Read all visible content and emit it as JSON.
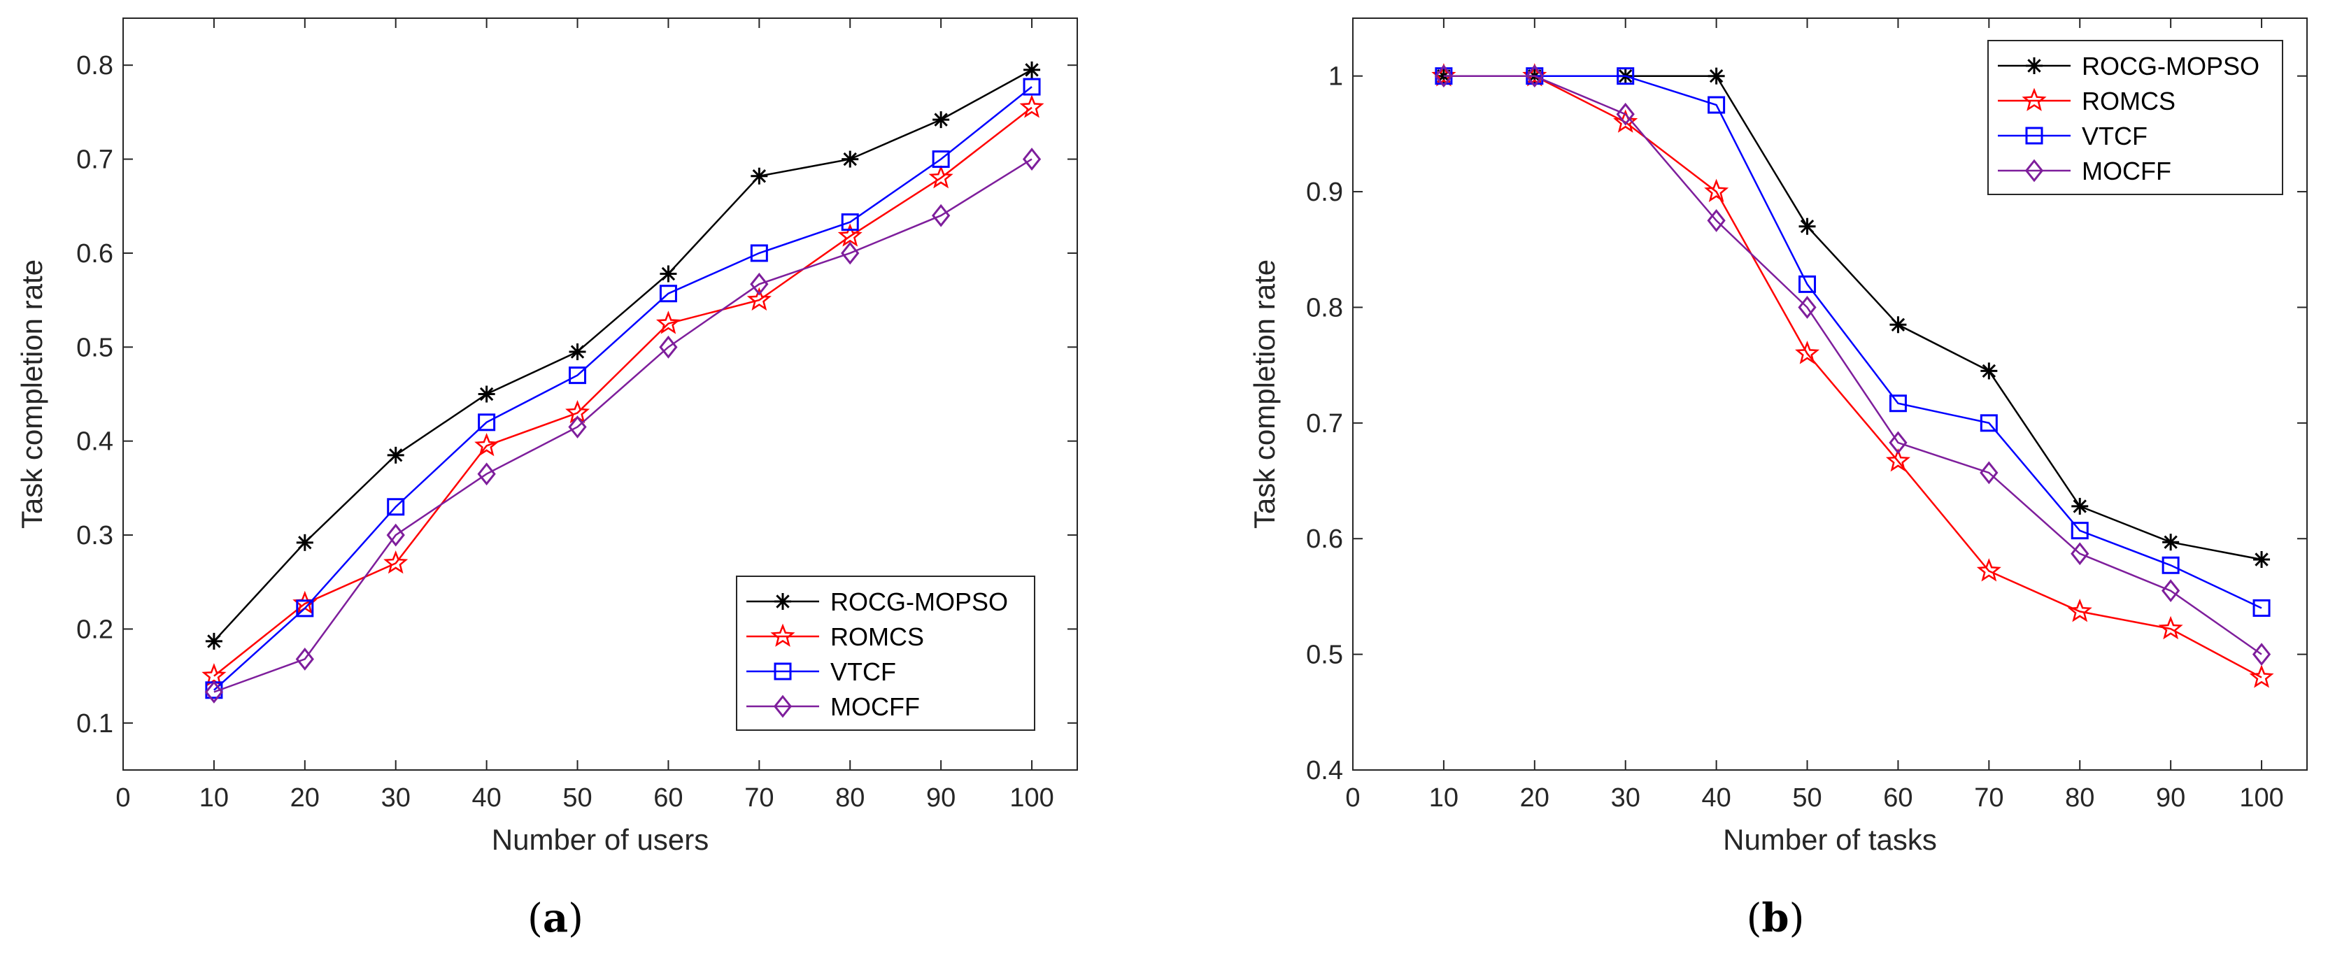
{
  "colors": {
    "ROCG-MOPSO": "#000000",
    "ROMCS": "#ff0000",
    "VTCF": "#0000ff",
    "MOCFF": "#7e1e9c"
  },
  "chart_data": [
    {
      "type": "line",
      "panel_label": {
        "open": "(",
        "letter": "a",
        "close": ")"
      },
      "xlabel": "Number of users",
      "ylabel": "Task completion rate",
      "xlim": [
        0,
        105
      ],
      "ylim": [
        0.05,
        0.85
      ],
      "xticks": [
        0,
        10,
        20,
        30,
        40,
        50,
        60,
        70,
        80,
        90,
        100
      ],
      "yticks": [
        0.1,
        0.2,
        0.3,
        0.4,
        0.5,
        0.6,
        0.7,
        0.8
      ],
      "legend_position": "bottom-right",
      "x": [
        10,
        20,
        30,
        40,
        50,
        60,
        70,
        80,
        90,
        100
      ],
      "series": [
        {
          "name": "ROCG-MOPSO",
          "marker": "asterisk",
          "values": [
            0.187,
            0.292,
            0.385,
            0.45,
            0.495,
            0.578,
            0.682,
            0.7,
            0.742,
            0.795
          ]
        },
        {
          "name": "ROMCS",
          "marker": "star",
          "values": [
            0.15,
            0.227,
            0.27,
            0.395,
            0.43,
            0.525,
            0.55,
            0.618,
            0.68,
            0.755
          ]
        },
        {
          "name": "VTCF",
          "marker": "square",
          "values": [
            0.135,
            0.222,
            0.33,
            0.42,
            0.47,
            0.557,
            0.6,
            0.633,
            0.7,
            0.777
          ]
        },
        {
          "name": "MOCFF",
          "marker": "diamond",
          "values": [
            0.133,
            0.168,
            0.3,
            0.365,
            0.415,
            0.5,
            0.567,
            0.6,
            0.64,
            0.7
          ]
        }
      ]
    },
    {
      "type": "line",
      "panel_label": {
        "open": "(",
        "letter": "b",
        "close": ")"
      },
      "xlabel": "Number of tasks",
      "ylabel": "Task completion rate",
      "xlim": [
        0,
        105
      ],
      "ylim": [
        0.4,
        1.05
      ],
      "xticks": [
        0,
        10,
        20,
        30,
        40,
        50,
        60,
        70,
        80,
        90,
        100
      ],
      "yticks": [
        0.4,
        0.5,
        0.6,
        0.7,
        0.8,
        0.9,
        1
      ],
      "legend_position": "top-right",
      "x": [
        10,
        20,
        30,
        40,
        50,
        60,
        70,
        80,
        90,
        100
      ],
      "series": [
        {
          "name": "ROCG-MOPSO",
          "marker": "asterisk",
          "values": [
            1,
            1,
            1,
            1,
            0.87,
            0.785,
            0.745,
            0.628,
            0.597,
            0.582
          ]
        },
        {
          "name": "ROMCS",
          "marker": "star",
          "values": [
            1,
            1,
            0.96,
            0.9,
            0.76,
            0.667,
            0.572,
            0.537,
            0.522,
            0.48
          ]
        },
        {
          "name": "VTCF",
          "marker": "square",
          "values": [
            1,
            1,
            1,
            0.975,
            0.82,
            0.717,
            0.7,
            0.607,
            0.577,
            0.54
          ]
        },
        {
          "name": "MOCFF",
          "marker": "diamond",
          "values": [
            1,
            1,
            0.967,
            0.875,
            0.8,
            0.683,
            0.657,
            0.587,
            0.555,
            0.5
          ]
        }
      ]
    }
  ]
}
